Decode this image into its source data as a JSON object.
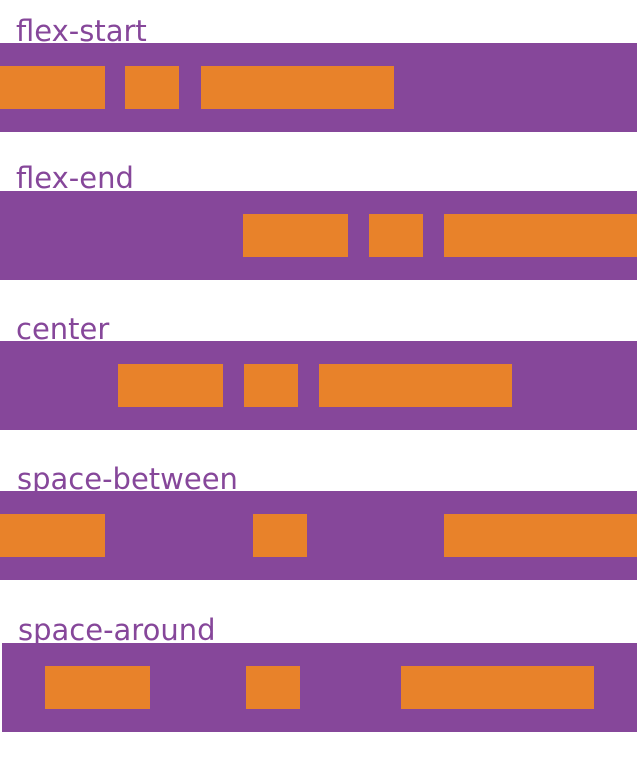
{
  "rows": [
    {
      "label": "flex-start"
    },
    {
      "label": "flex-end"
    },
    {
      "label": "center"
    },
    {
      "label": "space-between"
    },
    {
      "label": "space-around"
    }
  ]
}
